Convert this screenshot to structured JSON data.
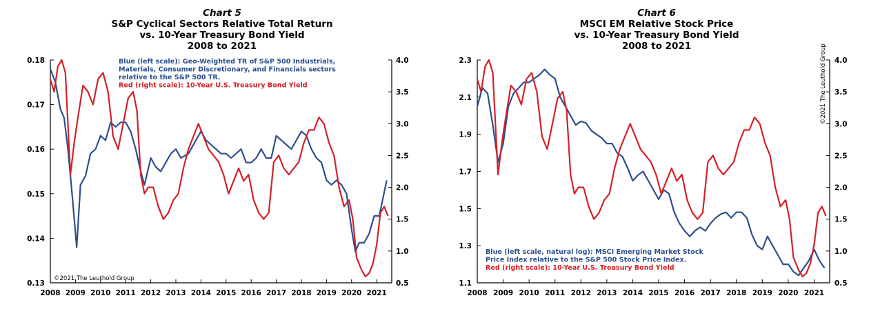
{
  "colors": {
    "blue": "#2c4f8c",
    "red": "#d42027"
  },
  "chart_data": [
    {
      "type": "line",
      "title_lines": [
        "Chart 5",
        "S&P Cyclical Sectors Relative Total Return",
        "vs. 10-Year Treasury Bond Yield",
        "2008 to 2021"
      ],
      "annotation_lines": [
        "Blue (left scale): Geo-Weighted TR of S&P 500 Industrials,",
        "Materials, Consumer Discretionary, and Financials sectors",
        "relative to the S&P 500 TR.",
        "Red (right scale): 10-Year U.S. Treasury Bond Yield"
      ],
      "annotation_colors": [
        "blue",
        "blue",
        "blue",
        "red"
      ],
      "copyright": "©2021 The Leuthold Group",
      "x_ticks": [
        "2008",
        "2009",
        "2010",
        "2011",
        "2012",
        "2013",
        "2014",
        "2015",
        "2016",
        "2017",
        "2018",
        "2019",
        "2020",
        "2021"
      ],
      "xlim": [
        2008,
        2021.6
      ],
      "y_left": {
        "lim": [
          0.13,
          0.18
        ],
        "ticks": [
          "0.18",
          "0.17",
          "0.16",
          "0.15",
          "0.14",
          "0.13"
        ]
      },
      "y_right": {
        "lim": [
          0.5,
          4.0
        ],
        "ticks": [
          "4.0",
          "3.5",
          "3.0",
          "2.5",
          "2.0",
          "1.5",
          "1.0",
          "0.5"
        ]
      },
      "series": [
        {
          "axis": "left",
          "color": "blue",
          "x": [
            2008.0,
            2008.2,
            2008.4,
            2008.55,
            2008.7,
            2008.85,
            2009.05,
            2009.2,
            2009.4,
            2009.6,
            2009.8,
            2010.0,
            2010.2,
            2010.4,
            2010.6,
            2010.8,
            2011.0,
            2011.2,
            2011.4,
            2011.6,
            2011.75,
            2012.0,
            2012.2,
            2012.4,
            2012.6,
            2012.8,
            2013.0,
            2013.2,
            2013.5,
            2013.8,
            2014.0,
            2014.2,
            2014.4,
            2014.6,
            2014.8,
            2015.0,
            2015.2,
            2015.4,
            2015.6,
            2015.8,
            2016.0,
            2016.2,
            2016.4,
            2016.6,
            2016.8,
            2017.0,
            2017.2,
            2017.4,
            2017.6,
            2017.8,
            2018.0,
            2018.2,
            2018.4,
            2018.6,
            2018.8,
            2019.0,
            2019.2,
            2019.4,
            2019.6,
            2019.8,
            2020.0,
            2020.15,
            2020.3,
            2020.5,
            2020.7,
            2020.9,
            2021.1,
            2021.25,
            2021.4
          ],
          "values": [
            0.178,
            0.175,
            0.169,
            0.167,
            0.16,
            0.151,
            0.138,
            0.152,
            0.154,
            0.159,
            0.16,
            0.163,
            0.162,
            0.166,
            0.165,
            0.166,
            0.166,
            0.164,
            0.16,
            0.155,
            0.152,
            0.158,
            0.156,
            0.155,
            0.157,
            0.159,
            0.16,
            0.158,
            0.159,
            0.162,
            0.164,
            0.162,
            0.161,
            0.16,
            0.159,
            0.159,
            0.158,
            0.159,
            0.16,
            0.157,
            0.157,
            0.158,
            0.16,
            0.158,
            0.158,
            0.163,
            0.162,
            0.161,
            0.16,
            0.162,
            0.164,
            0.163,
            0.16,
            0.158,
            0.157,
            0.153,
            0.152,
            0.153,
            0.152,
            0.15,
            0.142,
            0.137,
            0.139,
            0.139,
            0.141,
            0.145,
            0.145,
            0.149,
            0.153
          ]
        },
        {
          "axis": "right",
          "color": "red",
          "x": [
            2008.0,
            2008.15,
            2008.3,
            2008.45,
            2008.6,
            2008.8,
            2008.95,
            2009.1,
            2009.3,
            2009.5,
            2009.7,
            2009.9,
            2010.1,
            2010.3,
            2010.5,
            2010.7,
            2010.9,
            2011.1,
            2011.3,
            2011.45,
            2011.6,
            2011.75,
            2011.9,
            2012.1,
            2012.3,
            2012.5,
            2012.7,
            2012.9,
            2013.1,
            2013.3,
            2013.5,
            2013.7,
            2013.9,
            2014.1,
            2014.3,
            2014.5,
            2014.7,
            2014.9,
            2015.1,
            2015.3,
            2015.5,
            2015.7,
            2015.9,
            2016.1,
            2016.3,
            2016.5,
            2016.7,
            2016.9,
            2017.1,
            2017.3,
            2017.5,
            2017.7,
            2017.9,
            2018.1,
            2018.3,
            2018.5,
            2018.7,
            2018.9,
            2019.1,
            2019.3,
            2019.5,
            2019.7,
            2019.9,
            2020.05,
            2020.2,
            2020.4,
            2020.55,
            2020.7,
            2020.85,
            2021.0,
            2021.15,
            2021.3,
            2021.45
          ],
          "values": [
            3.7,
            3.5,
            3.9,
            4.0,
            3.8,
            2.2,
            2.7,
            3.1,
            3.6,
            3.5,
            3.3,
            3.7,
            3.8,
            3.5,
            2.8,
            2.6,
            3.0,
            3.4,
            3.5,
            3.2,
            2.2,
            1.9,
            2.0,
            2.0,
            1.7,
            1.5,
            1.6,
            1.8,
            1.9,
            2.3,
            2.6,
            2.8,
            3.0,
            2.8,
            2.6,
            2.5,
            2.4,
            2.2,
            1.9,
            2.1,
            2.3,
            2.1,
            2.2,
            1.8,
            1.6,
            1.5,
            1.6,
            2.4,
            2.5,
            2.3,
            2.2,
            2.3,
            2.4,
            2.7,
            2.9,
            2.9,
            3.1,
            3.0,
            2.7,
            2.5,
            2.0,
            1.7,
            1.8,
            1.5,
            0.9,
            0.7,
            0.6,
            0.65,
            0.8,
            1.1,
            1.6,
            1.7,
            1.55
          ]
        }
      ]
    },
    {
      "type": "line",
      "title_lines": [
        "Chart 6",
        "MSCI EM Relative Stock Price",
        "vs. 10-Year Treasury Bond Yield",
        "2008 to 2021"
      ],
      "annotation_lines": [
        "Blue (left scale, natural log): MSCI Emerging Market Stock",
        "Price Index relative to the S&P 500 Stock Price Index.",
        "Red (right scale): 10-Year U.S. Treasury Bond Yield"
      ],
      "annotation_colors": [
        "blue",
        "blue",
        "red"
      ],
      "copyright": "©2021 The Leuthold Group",
      "x_ticks": [
        "2008",
        "2009",
        "2010",
        "2011",
        "2012",
        "2013",
        "2014",
        "2015",
        "2016",
        "2017",
        "2018",
        "2019",
        "2020",
        "2021"
      ],
      "xlim": [
        2008,
        2021.6
      ],
      "y_left": {
        "lim": [
          1.1,
          2.3
        ],
        "ticks": [
          "2.3",
          "2.1",
          "1.9",
          "1.7",
          "1.5",
          "1.3",
          "1.1"
        ]
      },
      "y_right": {
        "lim": [
          0.5,
          4.0
        ],
        "ticks": [
          "4.0",
          "3.5",
          "3.0",
          "2.5",
          "2.0",
          "1.5",
          "1.0",
          "0.5"
        ]
      },
      "series": [
        {
          "axis": "left",
          "color": "blue",
          "x": [
            2008.0,
            2008.2,
            2008.4,
            2008.6,
            2008.8,
            2009.0,
            2009.2,
            2009.4,
            2009.6,
            2009.8,
            2010.0,
            2010.2,
            2010.4,
            2010.6,
            2010.8,
            2011.0,
            2011.2,
            2011.4,
            2011.6,
            2011.8,
            2012.0,
            2012.2,
            2012.4,
            2012.6,
            2012.8,
            2013.0,
            2013.2,
            2013.4,
            2013.6,
            2013.8,
            2014.0,
            2014.2,
            2014.4,
            2014.6,
            2014.8,
            2015.0,
            2015.2,
            2015.4,
            2015.6,
            2015.8,
            2016.0,
            2016.2,
            2016.4,
            2016.6,
            2016.8,
            2017.0,
            2017.2,
            2017.4,
            2017.6,
            2017.8,
            2018.0,
            2018.2,
            2018.4,
            2018.6,
            2018.8,
            2019.0,
            2019.2,
            2019.4,
            2019.6,
            2019.8,
            2020.0,
            2020.2,
            2020.4,
            2020.6,
            2020.8,
            2021.0,
            2021.2,
            2021.4
          ],
          "values": [
            2.05,
            2.15,
            2.12,
            1.95,
            1.75,
            1.85,
            2.05,
            2.12,
            2.15,
            2.18,
            2.18,
            2.2,
            2.22,
            2.25,
            2.22,
            2.2,
            2.1,
            2.05,
            2.0,
            1.95,
            1.97,
            1.96,
            1.92,
            1.9,
            1.88,
            1.85,
            1.85,
            1.8,
            1.78,
            1.72,
            1.65,
            1.68,
            1.7,
            1.65,
            1.6,
            1.55,
            1.6,
            1.58,
            1.48,
            1.42,
            1.38,
            1.35,
            1.38,
            1.4,
            1.38,
            1.42,
            1.45,
            1.47,
            1.48,
            1.45,
            1.48,
            1.48,
            1.45,
            1.36,
            1.3,
            1.28,
            1.35,
            1.3,
            1.25,
            1.2,
            1.2,
            1.16,
            1.14,
            1.18,
            1.22,
            1.28,
            1.22,
            1.18
          ]
        },
        {
          "axis": "right",
          "color": "red",
          "x": [
            2008.0,
            2008.15,
            2008.3,
            2008.45,
            2008.6,
            2008.8,
            2008.95,
            2009.1,
            2009.3,
            2009.5,
            2009.7,
            2009.9,
            2010.1,
            2010.3,
            2010.5,
            2010.7,
            2010.9,
            2011.1,
            2011.3,
            2011.45,
            2011.6,
            2011.75,
            2011.9,
            2012.1,
            2012.3,
            2012.5,
            2012.7,
            2012.9,
            2013.1,
            2013.3,
            2013.5,
            2013.7,
            2013.9,
            2014.1,
            2014.3,
            2014.5,
            2014.7,
            2014.9,
            2015.1,
            2015.3,
            2015.5,
            2015.7,
            2015.9,
            2016.1,
            2016.3,
            2016.5,
            2016.7,
            2016.9,
            2017.1,
            2017.3,
            2017.5,
            2017.7,
            2017.9,
            2018.1,
            2018.3,
            2018.5,
            2018.7,
            2018.9,
            2019.1,
            2019.3,
            2019.5,
            2019.7,
            2019.9,
            2020.05,
            2020.2,
            2020.4,
            2020.55,
            2020.7,
            2020.85,
            2021.0,
            2021.15,
            2021.3,
            2021.45
          ],
          "values": [
            3.7,
            3.5,
            3.9,
            4.0,
            3.8,
            2.2,
            2.7,
            3.1,
            3.6,
            3.5,
            3.3,
            3.7,
            3.8,
            3.5,
            2.8,
            2.6,
            3.0,
            3.4,
            3.5,
            3.2,
            2.2,
            1.9,
            2.0,
            2.0,
            1.7,
            1.5,
            1.6,
            1.8,
            1.9,
            2.3,
            2.6,
            2.8,
            3.0,
            2.8,
            2.6,
            2.5,
            2.4,
            2.2,
            1.9,
            2.1,
            2.3,
            2.1,
            2.2,
            1.8,
            1.6,
            1.5,
            1.6,
            2.4,
            2.5,
            2.3,
            2.2,
            2.3,
            2.4,
            2.7,
            2.9,
            2.9,
            3.1,
            3.0,
            2.7,
            2.5,
            2.0,
            1.7,
            1.8,
            1.5,
            0.9,
            0.7,
            0.6,
            0.65,
            0.8,
            1.1,
            1.6,
            1.7,
            1.55
          ]
        }
      ]
    }
  ]
}
